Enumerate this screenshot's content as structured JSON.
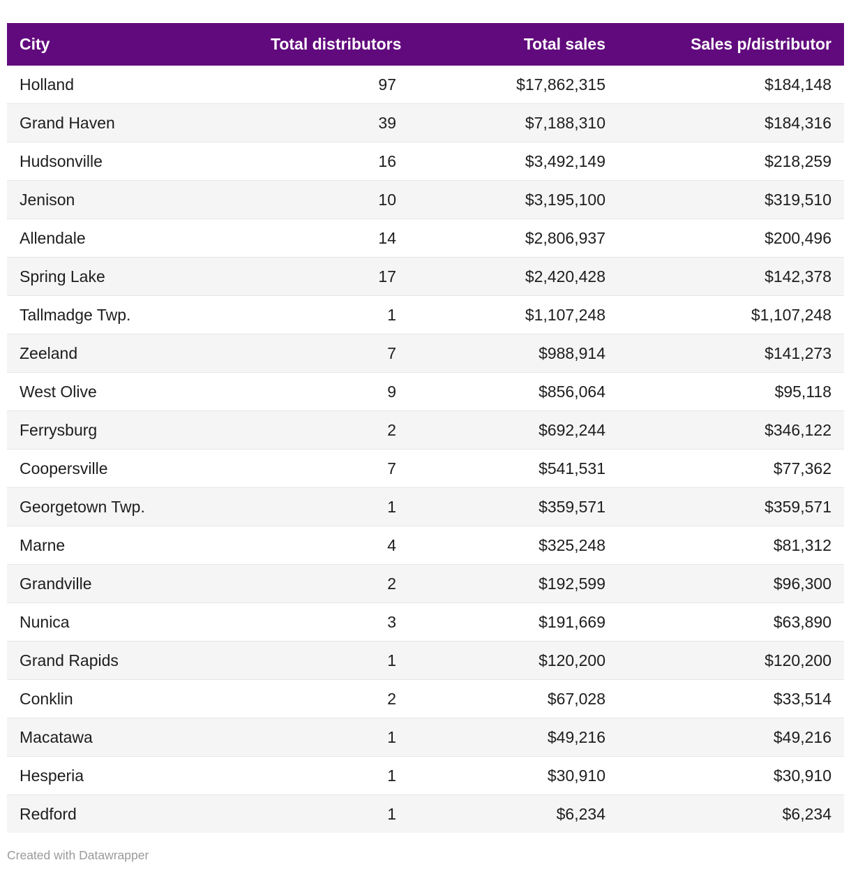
{
  "colors": {
    "header_bg": "#610a7d",
    "header_text": "#ffffff",
    "row_stripe": "#f5f5f5",
    "row_divider": "#e6e6e6",
    "cell_text": "#1d1d1d",
    "attribution_text": "#9a9a9a"
  },
  "footer": {
    "attribution": "Created with Datawrapper"
  },
  "chart_data": {
    "type": "table",
    "title": "",
    "columns": [
      "City",
      "Total distributors",
      "Total sales",
      "Sales p/distributor"
    ],
    "column_align": [
      "left",
      "right",
      "right",
      "right"
    ],
    "rows": [
      [
        "Holland",
        "97",
        "$17,862,315",
        "$184,148"
      ],
      [
        "Grand Haven",
        "39",
        "$7,188,310",
        "$184,316"
      ],
      [
        "Hudsonville",
        "16",
        "$3,492,149",
        "$218,259"
      ],
      [
        "Jenison",
        "10",
        "$3,195,100",
        "$319,510"
      ],
      [
        "Allendale",
        "14",
        "$2,806,937",
        "$200,496"
      ],
      [
        "Spring Lake",
        "17",
        "$2,420,428",
        "$142,378"
      ],
      [
        "Tallmadge Twp.",
        "1",
        "$1,107,248",
        "$1,107,248"
      ],
      [
        "Zeeland",
        "7",
        "$988,914",
        "$141,273"
      ],
      [
        "West Olive",
        "9",
        "$856,064",
        "$95,118"
      ],
      [
        "Ferrysburg",
        "2",
        "$692,244",
        "$346,122"
      ],
      [
        "Coopersville",
        "7",
        "$541,531",
        "$77,362"
      ],
      [
        "Georgetown Twp.",
        "1",
        "$359,571",
        "$359,571"
      ],
      [
        "Marne",
        "4",
        "$325,248",
        "$81,312"
      ],
      [
        "Grandville",
        "2",
        "$192,599",
        "$96,300"
      ],
      [
        "Nunica",
        "3",
        "$191,669",
        "$63,890"
      ],
      [
        "Grand Rapids",
        "1",
        "$120,200",
        "$120,200"
      ],
      [
        "Conklin",
        "2",
        "$67,028",
        "$33,514"
      ],
      [
        "Macatawa",
        "1",
        "$49,216",
        "$49,216"
      ],
      [
        "Hesperia",
        "1",
        "$30,910",
        "$30,910"
      ],
      [
        "Redford",
        "1",
        "$6,234",
        "$6,234"
      ]
    ]
  }
}
